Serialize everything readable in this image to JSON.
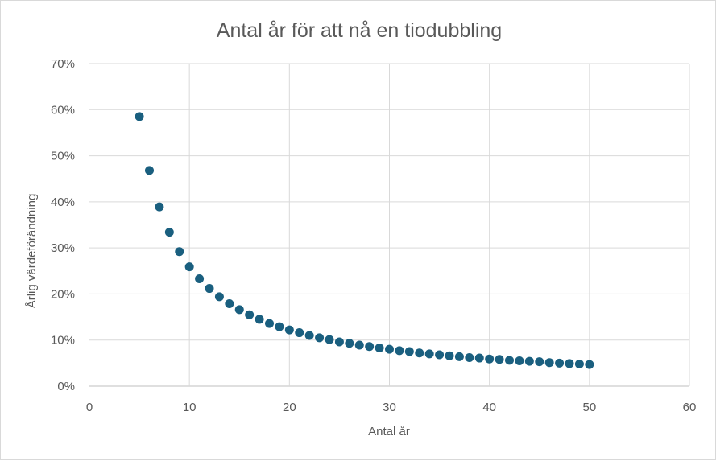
{
  "chart_data": {
    "type": "scatter",
    "title": "Antal år för att nå en tiodubbling",
    "xlabel": "Antal år",
    "ylabel": "Årlig värdeförändning",
    "xlim": [
      0,
      60
    ],
    "ylim": [
      0,
      0.7
    ],
    "x_ticks": [
      0,
      10,
      20,
      30,
      40,
      50,
      60
    ],
    "x_tick_labels": [
      "0",
      "10",
      "20",
      "30",
      "40",
      "50",
      "60"
    ],
    "y_ticks": [
      0,
      0.1,
      0.2,
      0.3,
      0.4,
      0.5,
      0.6,
      0.7
    ],
    "y_tick_labels": [
      "0%",
      "10%",
      "20%",
      "30%",
      "40%",
      "50%",
      "60%",
      "70%"
    ],
    "grid": true,
    "marker_color": "#1a5f7f",
    "x": [
      5,
      6,
      7,
      8,
      9,
      10,
      11,
      12,
      13,
      14,
      15,
      16,
      17,
      18,
      19,
      20,
      21,
      22,
      23,
      24,
      25,
      26,
      27,
      28,
      29,
      30,
      31,
      32,
      33,
      34,
      35,
      36,
      37,
      38,
      39,
      40,
      41,
      42,
      43,
      44,
      45,
      46,
      47,
      48,
      49,
      50
    ],
    "y": [
      0.585,
      0.468,
      0.389,
      0.334,
      0.292,
      0.259,
      0.233,
      0.212,
      0.194,
      0.179,
      0.166,
      0.155,
      0.145,
      0.136,
      0.129,
      0.122,
      0.116,
      0.11,
      0.105,
      0.101,
      0.096,
      0.093,
      0.089,
      0.086,
      0.083,
      0.08,
      0.077,
      0.075,
      0.072,
      0.07,
      0.068,
      0.066,
      0.064,
      0.062,
      0.061,
      0.059,
      0.058,
      0.056,
      0.055,
      0.054,
      0.053,
      0.051,
      0.05,
      0.049,
      0.048,
      0.047
    ]
  }
}
